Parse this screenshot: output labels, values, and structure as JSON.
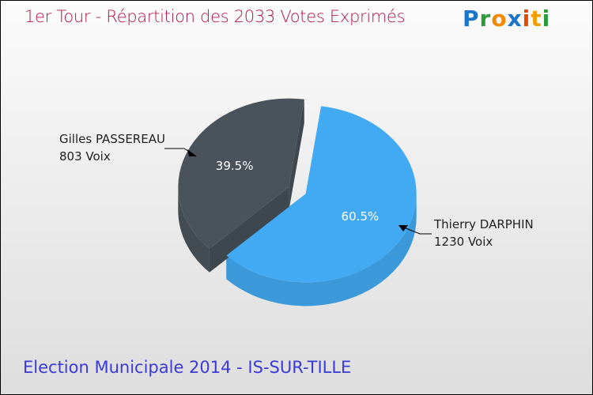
{
  "title": "1er Tour - Répartition des 2033 Votes Exprimés",
  "logo": "Proxiti",
  "subtitle": "Election Municipale 2014 - IS-SUR-TILLE",
  "chart_data": {
    "type": "pie",
    "title": "1er Tour - Répartition des 2033 Votes Exprimés",
    "slices": [
      {
        "name": "Thierry DARPHIN",
        "votes_label": "1230 Voix",
        "value": 1230,
        "percent_label": "60.5%",
        "color": "#42aaf2"
      },
      {
        "name": "Gilles PASSEREAU",
        "votes_label": "803 Voix",
        "value": 803,
        "percent_label": "39.5%",
        "color": "#4a535c"
      }
    ]
  }
}
